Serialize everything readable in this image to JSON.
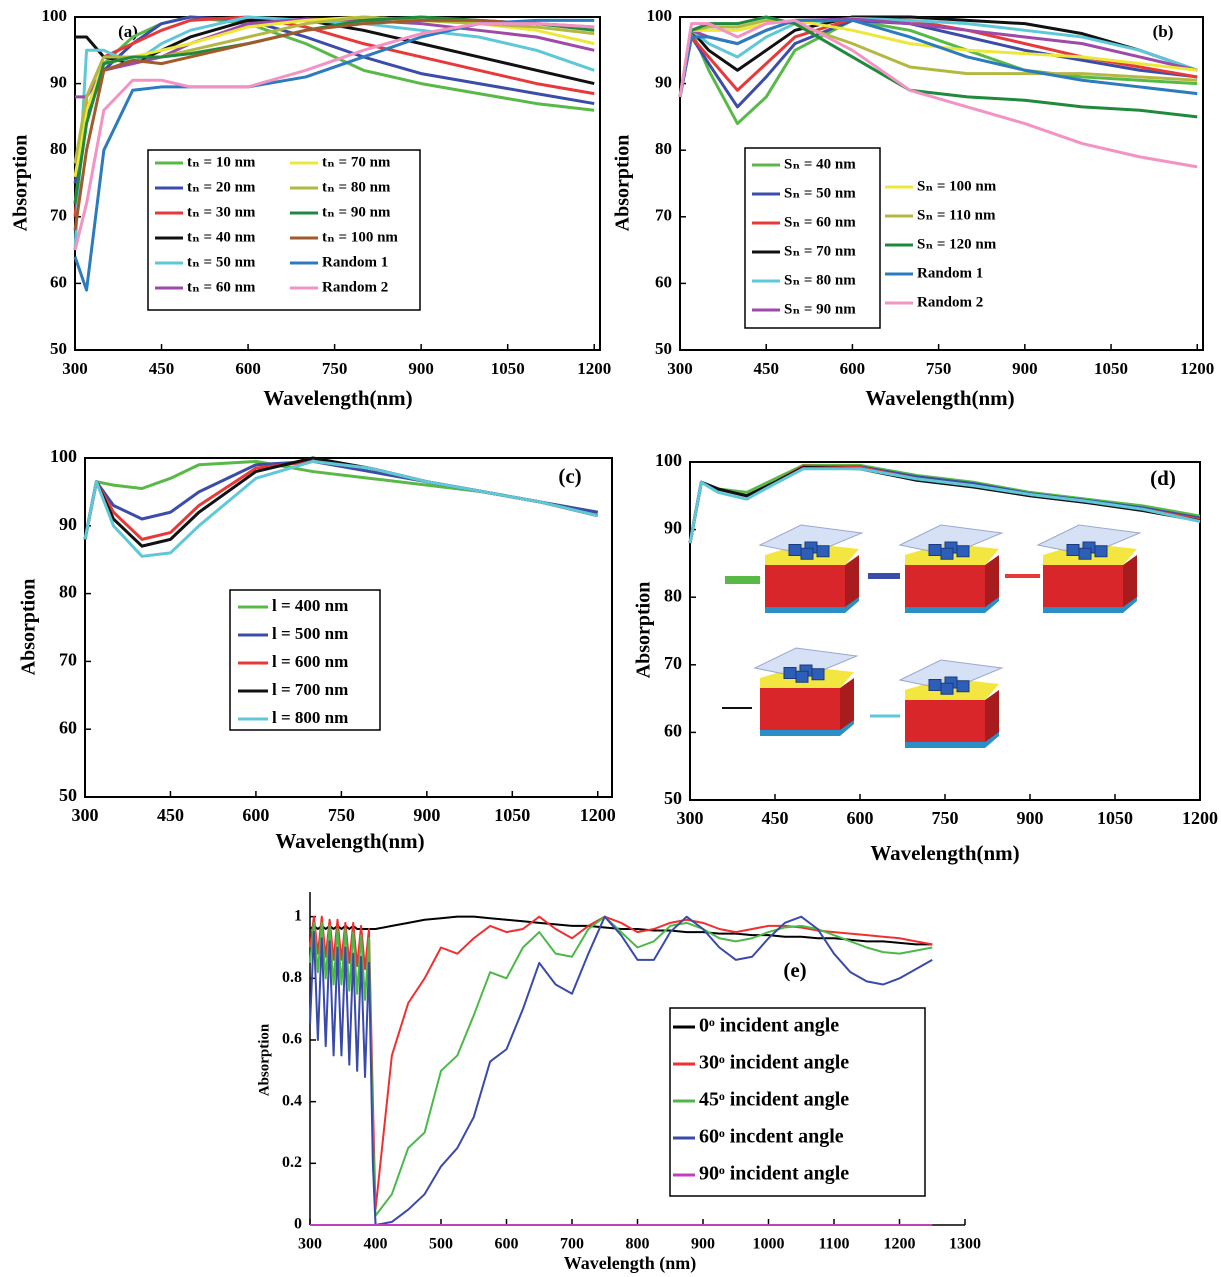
{
  "chart_data": [
    {
      "type": "line",
      "panel_label": "(a)",
      "xlabel": "Wavelength(nm)",
      "ylabel": "Absorption",
      "x": [
        300,
        320,
        350,
        400,
        450,
        500,
        600,
        700,
        800,
        900,
        1000,
        1100,
        1200
      ],
      "xlim": [
        300,
        1210
      ],
      "ylim": [
        50,
        100
      ],
      "xticks": [
        300,
        450,
        600,
        750,
        900,
        1050,
        1200
      ],
      "yticks": [
        50,
        60,
        70,
        80,
        90,
        100
      ],
      "series": [
        {
          "name": "tₙ = 10 nm",
          "color": "#58b947",
          "values": [
            72,
            86,
            93,
            97,
            99,
            100,
            99,
            96,
            92,
            90,
            88.5,
            87,
            86
          ]
        },
        {
          "name": "tₙ = 20 nm",
          "color": "#3b4da8",
          "values": [
            75,
            85,
            92,
            96,
            99,
            100,
            99.5,
            97,
            94,
            91.5,
            90,
            88.5,
            87
          ]
        },
        {
          "name": "tₙ = 30 nm",
          "color": "#e8393a",
          "values": [
            70,
            88,
            94,
            96,
            98,
            99.5,
            100,
            98.5,
            96,
            94,
            92,
            90,
            88.5
          ]
        },
        {
          "name": "tₙ = 40 nm",
          "color": "#111111",
          "values": [
            97,
            97,
            94,
            93,
            95,
            97,
            99.5,
            99.5,
            98,
            96,
            94,
            92,
            90
          ]
        },
        {
          "name": "tₙ = 50 nm",
          "color": "#5fc8d8",
          "values": [
            65,
            95,
            95,
            93,
            96,
            98,
            100,
            99.5,
            99,
            98,
            97,
            95,
            92
          ]
        },
        {
          "name": "tₙ = 60 nm",
          "color": "#9e4aa8",
          "values": [
            88,
            88,
            92,
            93,
            94,
            96,
            99,
            99.7,
            99.5,
            99,
            98,
            97,
            95
          ]
        },
        {
          "name": "tₙ = 70 nm",
          "color": "#ece83a",
          "values": [
            76,
            86,
            93,
            94,
            95,
            96,
            98.5,
            99.5,
            100,
            99.5,
            99,
            98,
            96
          ]
        },
        {
          "name": "tₙ = 80 nm",
          "color": "#b3b843",
          "values": [
            78,
            88,
            94,
            94,
            94,
            95,
            97,
            99,
            100,
            99.5,
            99,
            98.5,
            97.5
          ]
        },
        {
          "name": "tₙ = 90 nm",
          "color": "#1f8a3c",
          "values": [
            72,
            84,
            93,
            94,
            94,
            94.5,
            96,
            98,
            99.5,
            100,
            99.5,
            99,
            98
          ]
        },
        {
          "name": "tₙ = 100 nm",
          "color": "#a05a2c",
          "values": [
            68,
            80,
            92,
            93.5,
            93,
            94,
            96,
            98,
            99,
            99.5,
            99.5,
            99,
            98.5
          ]
        },
        {
          "name": "Random 1",
          "color": "#2b7bbd",
          "values": [
            64,
            59,
            80,
            89,
            89.5,
            89.5,
            89.5,
            91,
            94,
            97,
            99,
            99.5,
            99.5
          ]
        },
        {
          "name": "Random 2",
          "color": "#f293c4",
          "values": [
            65,
            72,
            86,
            90.5,
            90.5,
            89.5,
            89.5,
            92,
            95,
            97.5,
            99,
            99,
            98.5
          ]
        }
      ]
    },
    {
      "type": "line",
      "panel_label": "(b)",
      "xlabel": "Wavelength(nm)",
      "ylabel": "Absorption",
      "x": [
        300,
        320,
        350,
        400,
        450,
        500,
        600,
        700,
        800,
        900,
        1000,
        1100,
        1200
      ],
      "xlim": [
        300,
        1210
      ],
      "ylim": [
        50,
        100
      ],
      "xticks": [
        300,
        450,
        600,
        750,
        900,
        1050,
        1200
      ],
      "yticks": [
        50,
        60,
        70,
        80,
        90,
        100
      ],
      "series": [
        {
          "name": "Sₙ = 40 nm",
          "color": "#58b947",
          "values": [
            88,
            98,
            92,
            84,
            88,
            95,
            99.5,
            98,
            95,
            92,
            91,
            90.5,
            90
          ]
        },
        {
          "name": "Sₙ = 50 nm",
          "color": "#3b4da8",
          "values": [
            88,
            97,
            93,
            86.5,
            91,
            96,
            99.5,
            99,
            97,
            95,
            93.5,
            92,
            91
          ]
        },
        {
          "name": "Sₙ = 60 nm",
          "color": "#e8393a",
          "values": [
            88,
            97,
            94,
            89,
            93,
            97,
            99.7,
            99.5,
            98,
            96,
            94,
            92.5,
            91
          ]
        },
        {
          "name": "Sₙ = 70 nm",
          "color": "#111111",
          "values": [
            88,
            98,
            95,
            92,
            95,
            98,
            100,
            100,
            99.5,
            99,
            97.5,
            95,
            92
          ]
        },
        {
          "name": "Sₙ = 80 nm",
          "color": "#5fc8d8",
          "values": [
            88,
            98,
            96,
            94,
            97,
            99,
            99.8,
            99.5,
            99,
            98,
            97,
            95,
            92
          ]
        },
        {
          "name": "Sₙ = 90 nm",
          "color": "#9e4aa8",
          "values": [
            88,
            98,
            97,
            96,
            98,
            99.5,
            99.7,
            99,
            98,
            97,
            96,
            94,
            92
          ]
        },
        {
          "name": "Sₙ = 100 nm",
          "color": "#ece83a",
          "values": [
            88,
            98,
            98,
            98,
            99,
            99.5,
            98,
            96,
            95,
            94.5,
            94,
            93,
            92
          ]
        },
        {
          "name": "Sₙ = 110 nm",
          "color": "#b3b843",
          "values": [
            88,
            98,
            98.5,
            98.5,
            99.5,
            99,
            96,
            92.5,
            91.5,
            91.5,
            91.5,
            91,
            90.5
          ]
        },
        {
          "name": "Sₙ = 120 nm",
          "color": "#1f8a3c",
          "values": [
            88,
            98,
            99,
            99,
            100,
            99,
            94,
            89,
            88,
            87.5,
            86.5,
            86,
            85
          ]
        },
        {
          "name": "Random 1",
          "color": "#2b7bbd",
          "values": [
            88,
            97,
            97,
            96,
            98,
            99.5,
            99.5,
            97,
            94,
            92,
            90.5,
            89.5,
            88.5
          ]
        },
        {
          "name": "Random 2",
          "color": "#f293c4",
          "values": [
            88,
            99,
            99,
            97,
            99,
            99.5,
            95,
            89,
            86.5,
            84,
            81,
            79,
            77.5
          ]
        }
      ]
    },
    {
      "type": "line",
      "panel_label": "(c)",
      "xlabel": "Wavelength(nm)",
      "ylabel": "Absorption",
      "x": [
        300,
        320,
        350,
        400,
        450,
        500,
        600,
        700,
        800,
        900,
        1000,
        1100,
        1200
      ],
      "xlim": [
        300,
        1225
      ],
      "ylim": [
        50,
        100
      ],
      "xticks": [
        300,
        450,
        600,
        750,
        900,
        1050,
        1200
      ],
      "yticks": [
        50,
        60,
        70,
        80,
        90,
        100
      ],
      "series": [
        {
          "name": "l = 400 nm",
          "color": "#58b947",
          "values": [
            88,
            96.5,
            96,
            95.5,
            97,
            99,
            99.5,
            98,
            97,
            96,
            95,
            93.5,
            92
          ]
        },
        {
          "name": "l = 500 nm",
          "color": "#3b4da8",
          "values": [
            88,
            96.5,
            93,
            91,
            92,
            95,
            99,
            99.5,
            98,
            96.5,
            95,
            93.5,
            92
          ]
        },
        {
          "name": "l = 600 nm",
          "color": "#e8393a",
          "values": [
            88,
            96.5,
            92,
            88,
            89,
            93,
            98.5,
            99.5,
            98.5,
            96.5,
            95,
            93.5,
            91.5
          ]
        },
        {
          "name": "l = 700 nm",
          "color": "#111111",
          "values": [
            88,
            96.5,
            91,
            87,
            88,
            92,
            98,
            100,
            98.5,
            96.5,
            95,
            93.5,
            91.5
          ]
        },
        {
          "name": "l = 800 nm",
          "color": "#5fc8d8",
          "values": [
            88,
            96.5,
            90,
            85.5,
            86,
            90,
            97,
            99.5,
            98.5,
            96.5,
            95,
            93.5,
            91.5
          ]
        }
      ]
    },
    {
      "type": "line",
      "panel_label": "(d)",
      "xlabel": "Wavelength(nm)",
      "ylabel": "Absorption",
      "x": [
        300,
        320,
        350,
        400,
        450,
        500,
        600,
        700,
        800,
        900,
        1000,
        1100,
        1200
      ],
      "xlim": [
        300,
        1200
      ],
      "ylim": [
        50,
        100
      ],
      "xticks": [
        300,
        450,
        600,
        750,
        900,
        1050,
        1200
      ],
      "yticks": [
        50,
        60,
        70,
        80,
        90,
        100
      ],
      "series": [
        {
          "color": "#58b947",
          "values": [
            88,
            97,
            96,
            95.5,
            97.5,
            99.5,
            99.5,
            98,
            97,
            95.5,
            94.5,
            93.5,
            92
          ]
        },
        {
          "color": "#3b4da8",
          "values": [
            88,
            97,
            96,
            95,
            97,
            99.3,
            99.3,
            97.8,
            96.8,
            95.3,
            94.3,
            93.2,
            91.7
          ]
        },
        {
          "color": "#e8393a",
          "values": [
            88,
            97,
            96,
            95,
            97,
            99.4,
            99.2,
            97.5,
            96.5,
            95,
            94,
            93,
            91.5
          ]
        },
        {
          "color": "#111111",
          "values": [
            88,
            97,
            96,
            95,
            97,
            99.2,
            99,
            97.3,
            96.3,
            95,
            94,
            92.8,
            91.3
          ]
        },
        {
          "color": "#5fc8d8",
          "values": [
            88,
            97,
            95.5,
            94.5,
            96.8,
            99,
            99,
            97.5,
            96.5,
            95.2,
            94.2,
            93,
            91.2
          ]
        }
      ]
    },
    {
      "type": "line",
      "panel_label": "(e)",
      "xlabel": "Wavelength (nm)",
      "ylabel": "Absorption",
      "x": [
        300,
        306,
        312,
        318,
        324,
        330,
        336,
        342,
        348,
        354,
        360,
        366,
        372,
        378,
        384,
        390,
        396,
        400,
        425,
        450,
        475,
        500,
        525,
        550,
        575,
        600,
        625,
        650,
        675,
        700,
        725,
        750,
        775,
        800,
        825,
        850,
        875,
        900,
        925,
        950,
        975,
        1000,
        1025,
        1050,
        1075,
        1100,
        1125,
        1150,
        1175,
        1200,
        1225,
        1250
      ],
      "xlim": [
        300,
        1300
      ],
      "ylim": [
        0,
        1.08
      ],
      "xticks": [
        300,
        400,
        500,
        600,
        700,
        800,
        900,
        1000,
        1100,
        1200,
        1300
      ],
      "yticks": [
        0,
        0.2,
        0.4,
        0.6,
        0.8,
        1
      ],
      "series": [
        {
          "name": "0ᵒ incident angle",
          "color": "#000000",
          "values": [
            0.96,
            0.97,
            0.96,
            0.97,
            0.96,
            0.97,
            0.96,
            0.97,
            0.96,
            0.97,
            0.96,
            0.97,
            0.96,
            0.96,
            0.96,
            0.96,
            0.96,
            0.96,
            0.97,
            0.98,
            0.99,
            0.995,
            1.0,
            1.0,
            0.995,
            0.99,
            0.985,
            0.98,
            0.975,
            0.97,
            0.97,
            0.965,
            0.96,
            0.96,
            0.955,
            0.955,
            0.95,
            0.95,
            0.945,
            0.945,
            0.94,
            0.94,
            0.935,
            0.935,
            0.93,
            0.93,
            0.925,
            0.92,
            0.92,
            0.915,
            0.91,
            0.91
          ]
        },
        {
          "name": "30ᵒ incident angle",
          "color": "#f03030",
          "values": [
            0.9,
            1.0,
            0.88,
            1.0,
            0.87,
            0.99,
            0.86,
            0.99,
            0.86,
            0.98,
            0.85,
            0.98,
            0.84,
            0.97,
            0.83,
            0.96,
            0.4,
            0.05,
            0.55,
            0.72,
            0.8,
            0.9,
            0.88,
            0.93,
            0.97,
            0.95,
            0.96,
            1.0,
            0.96,
            0.93,
            0.97,
            1.0,
            0.98,
            0.95,
            0.96,
            0.98,
            0.99,
            0.98,
            0.96,
            0.95,
            0.96,
            0.97,
            0.97,
            0.965,
            0.955,
            0.95,
            0.945,
            0.94,
            0.935,
            0.93,
            0.92,
            0.91
          ]
        },
        {
          "name": "45ᵒ incident angle",
          "color": "#4cb848",
          "values": [
            0.85,
            0.98,
            0.82,
            0.98,
            0.8,
            0.97,
            0.78,
            0.96,
            0.78,
            0.96,
            0.76,
            0.95,
            0.75,
            0.94,
            0.73,
            0.93,
            0.3,
            0.03,
            0.1,
            0.25,
            0.3,
            0.5,
            0.55,
            0.68,
            0.82,
            0.8,
            0.9,
            0.95,
            0.88,
            0.87,
            0.96,
            1.0,
            0.95,
            0.9,
            0.92,
            0.97,
            0.98,
            0.96,
            0.93,
            0.92,
            0.93,
            0.95,
            0.965,
            0.97,
            0.96,
            0.94,
            0.92,
            0.9,
            0.885,
            0.88,
            0.89,
            0.9
          ]
        },
        {
          "name": "60ᵒ incdent angle",
          "color": "#3a4aa8",
          "values": [
            0.65,
            0.95,
            0.6,
            0.93,
            0.58,
            0.92,
            0.55,
            0.9,
            0.55,
            0.9,
            0.52,
            0.88,
            0.5,
            0.87,
            0.48,
            0.85,
            0.2,
            0.0,
            0.01,
            0.05,
            0.1,
            0.19,
            0.25,
            0.35,
            0.53,
            0.57,
            0.7,
            0.85,
            0.78,
            0.75,
            0.88,
            1.0,
            0.94,
            0.86,
            0.86,
            0.95,
            1.0,
            0.96,
            0.9,
            0.86,
            0.87,
            0.93,
            0.98,
            1.0,
            0.96,
            0.88,
            0.82,
            0.79,
            0.78,
            0.8,
            0.83,
            0.86
          ]
        },
        {
          "name": "90ᵒ incident angle",
          "color": "#c040c0",
          "values": [
            0,
            0,
            0,
            0,
            0,
            0,
            0,
            0,
            0,
            0,
            0,
            0,
            0,
            0,
            0,
            0,
            0,
            0,
            0,
            0,
            0,
            0,
            0,
            0,
            0,
            0,
            0,
            0,
            0,
            0,
            0,
            0,
            0,
            0,
            0,
            0,
            0,
            0,
            0,
            0,
            0,
            0,
            0,
            0,
            0,
            0,
            0,
            0,
            0,
            0,
            0,
            0
          ]
        }
      ]
    }
  ]
}
